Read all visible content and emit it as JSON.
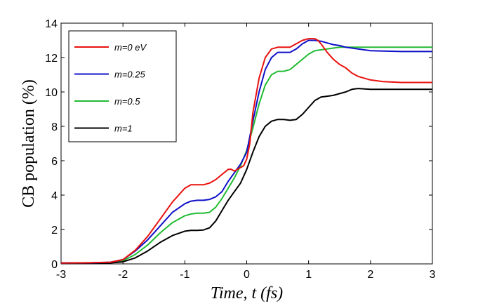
{
  "chart_data": {
    "type": "line",
    "xlabel": "Time, t (fs)",
    "ylabel": "CB population (%)",
    "xlim": [
      -3,
      3
    ],
    "ylim": [
      0,
      14
    ],
    "xticks": [
      "-3",
      "-2",
      "-1",
      "0",
      "1",
      "2",
      "3"
    ],
    "yticks": [
      "0",
      "2",
      "4",
      "6",
      "8",
      "10",
      "12",
      "14"
    ],
    "grid": false,
    "legend_position": "top-left",
    "series": [
      {
        "name": "m=0 eV",
        "color": "#e8120e",
        "x": [
          -3,
          -2.5,
          -2.2,
          -2.0,
          -1.8,
          -1.6,
          -1.4,
          -1.2,
          -1.1,
          -1.0,
          -0.9,
          -0.8,
          -0.7,
          -0.6,
          -0.5,
          -0.4,
          -0.3,
          -0.25,
          -0.2,
          -0.15,
          -0.1,
          -0.05,
          0,
          0.05,
          0.1,
          0.2,
          0.3,
          0.4,
          0.5,
          0.6,
          0.7,
          0.8,
          0.9,
          1.0,
          1.1,
          1.15,
          1.2,
          1.3,
          1.4,
          1.5,
          1.6,
          1.7,
          1.8,
          2.0,
          2.2,
          2.5,
          3.0
        ],
        "y": [
          0.05,
          0.07,
          0.1,
          0.25,
          0.8,
          1.6,
          2.6,
          3.6,
          4.0,
          4.4,
          4.6,
          4.6,
          4.6,
          4.7,
          4.9,
          5.2,
          5.5,
          5.5,
          5.4,
          5.5,
          5.6,
          5.7,
          6.1,
          7.0,
          8.8,
          10.8,
          12.0,
          12.5,
          12.6,
          12.6,
          12.6,
          12.8,
          13.0,
          13.1,
          13.1,
          13.0,
          12.8,
          12.3,
          11.9,
          11.6,
          11.4,
          11.1,
          10.9,
          10.7,
          10.6,
          10.55,
          10.55
        ]
      },
      {
        "name": "m=0.25",
        "color": "#1010c8",
        "x": [
          -3,
          -2.5,
          -2.2,
          -2.0,
          -1.8,
          -1.6,
          -1.4,
          -1.2,
          -1.0,
          -0.9,
          -0.8,
          -0.7,
          -0.6,
          -0.5,
          -0.4,
          -0.3,
          -0.2,
          -0.1,
          0,
          0.1,
          0.2,
          0.3,
          0.4,
          0.5,
          0.6,
          0.7,
          0.8,
          0.9,
          1.0,
          1.1,
          1.2,
          1.3,
          1.4,
          1.5,
          1.6,
          1.8,
          2.0,
          2.5,
          3.0
        ],
        "y": [
          0.05,
          0.06,
          0.1,
          0.25,
          0.75,
          1.4,
          2.2,
          3.0,
          3.5,
          3.65,
          3.7,
          3.7,
          3.75,
          3.9,
          4.2,
          4.8,
          5.3,
          5.8,
          6.5,
          8.3,
          10.0,
          11.3,
          12.0,
          12.3,
          12.3,
          12.3,
          12.5,
          12.8,
          13.0,
          13.0,
          12.95,
          12.85,
          12.75,
          12.7,
          12.6,
          12.5,
          12.4,
          12.35,
          12.35
        ]
      },
      {
        "name": "m=0.5",
        "color": "#22bb33",
        "x": [
          -3,
          -2.5,
          -2.2,
          -2.0,
          -1.8,
          -1.6,
          -1.4,
          -1.2,
          -1.0,
          -0.9,
          -0.8,
          -0.7,
          -0.6,
          -0.5,
          -0.4,
          -0.3,
          -0.2,
          -0.1,
          0,
          0.1,
          0.2,
          0.3,
          0.4,
          0.5,
          0.6,
          0.7,
          0.8,
          0.9,
          1.0,
          1.1,
          1.2,
          1.3,
          1.4,
          1.5,
          1.6,
          1.8,
          2.0,
          2.5,
          3.0
        ],
        "y": [
          0.05,
          0.06,
          0.08,
          0.18,
          0.55,
          1.1,
          1.8,
          2.4,
          2.8,
          2.9,
          2.95,
          2.95,
          3.0,
          3.3,
          3.8,
          4.4,
          5.0,
          5.7,
          6.6,
          7.9,
          9.3,
          10.4,
          11.0,
          11.2,
          11.2,
          11.3,
          11.6,
          11.9,
          12.2,
          12.4,
          12.45,
          12.5,
          12.55,
          12.6,
          12.6,
          12.6,
          12.6,
          12.6,
          12.6
        ]
      },
      {
        "name": "m=1",
        "color": "#000000",
        "x": [
          -3,
          -2.5,
          -2.2,
          -2.0,
          -1.8,
          -1.6,
          -1.4,
          -1.2,
          -1.0,
          -0.9,
          -0.8,
          -0.7,
          -0.6,
          -0.5,
          -0.4,
          -0.3,
          -0.2,
          -0.1,
          0,
          0.1,
          0.2,
          0.3,
          0.4,
          0.5,
          0.6,
          0.7,
          0.8,
          0.9,
          1.0,
          1.1,
          1.2,
          1.3,
          1.4,
          1.5,
          1.6,
          1.7,
          1.8,
          2.0,
          2.5,
          3.0
        ],
        "y": [
          0.05,
          0.05,
          0.06,
          0.12,
          0.35,
          0.75,
          1.25,
          1.65,
          1.9,
          1.95,
          1.95,
          1.97,
          2.1,
          2.5,
          3.1,
          3.7,
          4.2,
          4.7,
          5.5,
          6.5,
          7.4,
          8.0,
          8.3,
          8.4,
          8.4,
          8.35,
          8.4,
          8.7,
          9.1,
          9.5,
          9.7,
          9.75,
          9.8,
          9.9,
          10.0,
          10.15,
          10.2,
          10.15,
          10.15,
          10.15
        ]
      }
    ]
  }
}
